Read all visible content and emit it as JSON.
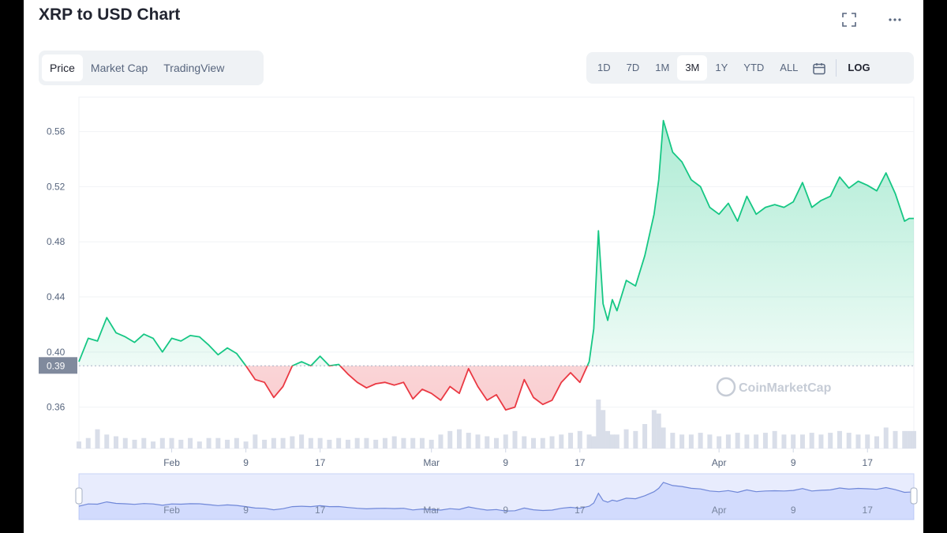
{
  "title": "XRP to USD Chart",
  "header_icons": [
    "fullscreen-icon",
    "more-icon"
  ],
  "tabs": [
    {
      "label": "Price",
      "active": true
    },
    {
      "label": "Market Cap",
      "active": false
    },
    {
      "label": "TradingView",
      "active": false
    }
  ],
  "ranges": [
    {
      "label": "1D",
      "active": false
    },
    {
      "label": "7D",
      "active": false
    },
    {
      "label": "1M",
      "active": false
    },
    {
      "label": "3M",
      "active": true
    },
    {
      "label": "1Y",
      "active": false
    },
    {
      "label": "YTD",
      "active": false
    },
    {
      "label": "ALL",
      "active": false
    }
  ],
  "log_label": "LOG",
  "watermark": "CoinMarketCap",
  "colors": {
    "up": "#16c784",
    "down": "#ea3943",
    "volume": "#cfd6e4",
    "navigator": "#3861fb"
  },
  "chart_data": {
    "type": "area",
    "x_tick_labels": [
      "Feb",
      "9",
      "17",
      "Mar",
      "9",
      "17",
      "Apr",
      "9",
      "17"
    ],
    "x_tick_days": [
      0,
      8,
      16,
      28,
      36,
      44,
      59,
      67,
      75
    ],
    "yticks": [
      0.56,
      0.52,
      0.48,
      0.44,
      0.4,
      0.36
    ],
    "ylim": [
      0.33,
      0.585
    ],
    "baseline": 0.39,
    "baseline_label": "0.39",
    "x_days": [
      -10,
      -9,
      -8,
      -7,
      -6,
      -5,
      -4,
      -3,
      -2,
      -1,
      0,
      1,
      2,
      3,
      4,
      5,
      6,
      7,
      8,
      9,
      10,
      11,
      12,
      13,
      14,
      15,
      16,
      17,
      18,
      19,
      20,
      21,
      22,
      23,
      24,
      25,
      26,
      27,
      28,
      29,
      30,
      31,
      32,
      33,
      34,
      35,
      36,
      37,
      38,
      39,
      40,
      41,
      42,
      43,
      44,
      45,
      45.5,
      46,
      46.5,
      47,
      47.5,
      48,
      49,
      50,
      51,
      52,
      52.5,
      53,
      54,
      55,
      56,
      57,
      58,
      59,
      60,
      61,
      62,
      63,
      64,
      65,
      66,
      67,
      68,
      69,
      70,
      71,
      72,
      73,
      74,
      75,
      76,
      77,
      78,
      79,
      79.5,
      80
    ],
    "price": [
      0.393,
      0.41,
      0.408,
      0.425,
      0.414,
      0.411,
      0.407,
      0.413,
      0.41,
      0.4,
      0.41,
      0.408,
      0.412,
      0.411,
      0.405,
      0.398,
      0.403,
      0.399,
      0.39,
      0.38,
      0.378,
      0.367,
      0.375,
      0.39,
      0.393,
      0.39,
      0.397,
      0.39,
      0.391,
      0.384,
      0.378,
      0.374,
      0.377,
      0.378,
      0.376,
      0.378,
      0.366,
      0.373,
      0.37,
      0.365,
      0.375,
      0.37,
      0.388,
      0.375,
      0.365,
      0.369,
      0.358,
      0.36,
      0.38,
      0.367,
      0.362,
      0.365,
      0.378,
      0.385,
      0.378,
      0.393,
      0.417,
      0.488,
      0.435,
      0.423,
      0.438,
      0.43,
      0.452,
      0.448,
      0.47,
      0.5,
      0.525,
      0.568,
      0.545,
      0.538,
      0.525,
      0.52,
      0.505,
      0.5,
      0.508,
      0.495,
      0.513,
      0.5,
      0.505,
      0.507,
      0.505,
      0.509,
      0.523,
      0.505,
      0.51,
      0.513,
      0.527,
      0.519,
      0.524,
      0.521,
      0.517,
      0.53,
      0.515,
      0.495,
      0.497,
      0.497
    ],
    "volume": [
      0.2,
      0.3,
      0.55,
      0.4,
      0.35,
      0.3,
      0.25,
      0.3,
      0.2,
      0.3,
      0.3,
      0.25,
      0.3,
      0.2,
      0.3,
      0.3,
      0.25,
      0.3,
      0.2,
      0.4,
      0.25,
      0.3,
      0.3,
      0.35,
      0.4,
      0.3,
      0.3,
      0.25,
      0.3,
      0.25,
      0.3,
      0.3,
      0.25,
      0.3,
      0.35,
      0.3,
      0.3,
      0.3,
      0.25,
      0.4,
      0.5,
      0.55,
      0.45,
      0.4,
      0.35,
      0.3,
      0.4,
      0.5,
      0.35,
      0.3,
      0.3,
      0.35,
      0.4,
      0.45,
      0.5,
      0.4,
      0.35,
      1.4,
      1.1,
      0.5,
      0.4,
      0.4,
      0.55,
      0.5,
      0.7,
      1.1,
      1.0,
      0.6,
      0.45,
      0.4,
      0.4,
      0.45,
      0.4,
      0.35,
      0.4,
      0.45,
      0.4,
      0.4,
      0.45,
      0.5,
      0.4,
      0.4,
      0.4,
      0.45,
      0.4,
      0.45,
      0.5,
      0.45,
      0.4,
      0.4,
      0.35,
      0.6,
      0.5,
      0.5,
      0.5,
      0.5
    ]
  }
}
